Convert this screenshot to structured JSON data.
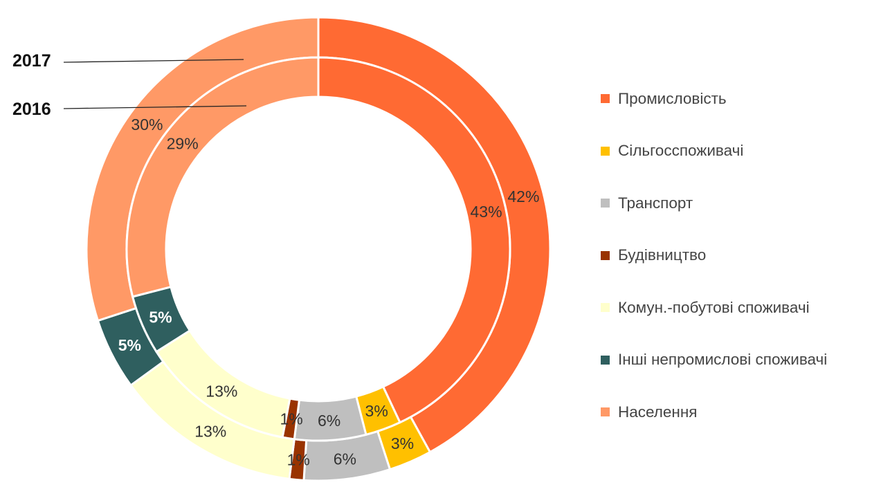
{
  "chart_data": {
    "type": "donut",
    "categories": [
      "Промисловість",
      "Сільгосспоживачі",
      "Транспорт",
      "Будівництво",
      "Комун.-побутові споживачі",
      "Інші непромислові споживачі",
      "Населення"
    ],
    "colors": [
      "#ff6a33",
      "#ffc000",
      "#bfbfbf",
      "#993300",
      "#ffffcc",
      "#2f5f5f",
      "#ff9966"
    ],
    "series": [
      {
        "name": "2017",
        "ring": "outer",
        "values": [
          42,
          3,
          6,
          1,
          13,
          5,
          30
        ]
      },
      {
        "name": "2016",
        "ring": "inner",
        "values": [
          43,
          3,
          6,
          1,
          13,
          5,
          29
        ]
      }
    ],
    "data_labels": [
      {
        "ring": "outer",
        "labels": [
          "42%",
          "3%",
          "6%",
          "1%",
          "13%",
          "5%",
          "30%"
        ]
      },
      {
        "ring": "inner",
        "labels": [
          "43%",
          "3%",
          "6%",
          "1%",
          "13%",
          "5%",
          "29%"
        ]
      }
    ],
    "legend_position": "right",
    "title": ""
  }
}
